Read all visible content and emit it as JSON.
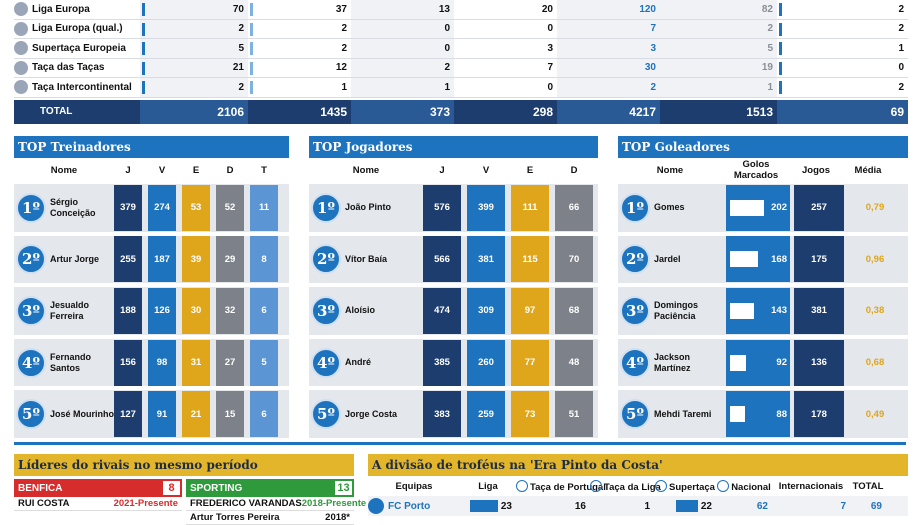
{
  "competitions": {
    "rows": [
      {
        "name": "Liga Europa",
        "icon": "trophy-icon",
        "values": [
          "70",
          "37",
          "13",
          "20",
          "120",
          "82",
          "2"
        ]
      },
      {
        "name": "Liga Europa (qual.)",
        "icon": "trophy-icon",
        "values": [
          "2",
          "2",
          "0",
          "0",
          "7",
          "2",
          "2"
        ]
      },
      {
        "name": "Supertaça Europeia",
        "icon": "trophy-icon",
        "values": [
          "5",
          "2",
          "0",
          "3",
          "3",
          "5",
          "1"
        ]
      },
      {
        "name": "Taça das Taças",
        "icon": "trophy-icon",
        "values": [
          "21",
          "12",
          "2",
          "7",
          "30",
          "19",
          "0"
        ]
      },
      {
        "name": "Taça Intercontinental",
        "icon": "trophy-icon",
        "values": [
          "2",
          "1",
          "1",
          "0",
          "2",
          "1",
          "2"
        ]
      }
    ],
    "total": {
      "label": "TOTAL",
      "values": [
        "2106",
        "1435",
        "373",
        "298",
        "4217",
        "1513",
        "69"
      ]
    }
  },
  "top_treinadores": {
    "title": "TOP Treinadores",
    "columns": [
      "Nome",
      "J",
      "V",
      "E",
      "D",
      "T"
    ],
    "rows": [
      {
        "rank": "1º",
        "name": "Sérgio Conceição",
        "values": [
          "379",
          "274",
          "53",
          "52",
          "11"
        ]
      },
      {
        "rank": "2º",
        "name": "Artur Jorge",
        "values": [
          "255",
          "187",
          "39",
          "29",
          "8"
        ]
      },
      {
        "rank": "3º",
        "name": "Jesualdo Ferreira",
        "values": [
          "188",
          "126",
          "30",
          "32",
          "6"
        ]
      },
      {
        "rank": "4º",
        "name": "Fernando Santos",
        "values": [
          "156",
          "98",
          "31",
          "27",
          "5"
        ]
      },
      {
        "rank": "5º",
        "name": "José Mourinho",
        "values": [
          "127",
          "91",
          "21",
          "15",
          "6"
        ]
      }
    ]
  },
  "top_jogadores": {
    "title": "TOP Jogadores",
    "columns": [
      "Nome",
      "J",
      "V",
      "E",
      "D"
    ],
    "rows": [
      {
        "rank": "1º",
        "name": "João Pinto",
        "values": [
          "576",
          "399",
          "111",
          "66"
        ]
      },
      {
        "rank": "2º",
        "name": "Vítor Baía",
        "values": [
          "566",
          "381",
          "115",
          "70"
        ]
      },
      {
        "rank": "3º",
        "name": "Aloísio",
        "values": [
          "474",
          "309",
          "97",
          "68"
        ]
      },
      {
        "rank": "4º",
        "name": "André",
        "values": [
          "385",
          "260",
          "77",
          "48"
        ]
      },
      {
        "rank": "5º",
        "name": "Jorge Costa",
        "values": [
          "383",
          "259",
          "73",
          "51"
        ]
      }
    ]
  },
  "top_goleadores": {
    "title": "TOP Goleadores",
    "columns": [
      "Nome",
      "Golos Marcados",
      "Jogos",
      "Média"
    ],
    "rows": [
      {
        "rank": "1º",
        "name": "Gomes",
        "goals": "202",
        "goals_fraction": 1.0,
        "games": "257",
        "avg": "0,79"
      },
      {
        "rank": "2º",
        "name": "Jardel",
        "goals": "168",
        "goals_fraction": 0.83,
        "games": "175",
        "avg": "0,96"
      },
      {
        "rank": "3º",
        "name": "Domingos Paciência",
        "goals": "143",
        "goals_fraction": 0.71,
        "games": "381",
        "avg": "0,38"
      },
      {
        "rank": "4º",
        "name": "Jackson Martínez",
        "goals": "92",
        "goals_fraction": 0.46,
        "games": "136",
        "avg": "0,68"
      },
      {
        "rank": "5º",
        "name": "Mehdi Taremi",
        "goals": "88",
        "goals_fraction": 0.44,
        "games": "178",
        "avg": "0,49"
      }
    ]
  },
  "rivals": {
    "title": "Líderes do rivais no mesmo período",
    "benfica": {
      "club": "BENFICA",
      "count": "8",
      "presidents": [
        {
          "name": "RUI COSTA",
          "years": "2021-Presente"
        }
      ]
    },
    "sporting": {
      "club": "SPORTING",
      "count": "13",
      "presidents": [
        {
          "name": "FREDERICO VARANDAS",
          "years": "2018-Presente"
        },
        {
          "name": "Artur Torres Pereira",
          "years": "2018*"
        }
      ]
    }
  },
  "trophies": {
    "title": "A divisão de troféus na 'Era Pinto da Costa'",
    "columns": [
      "Equipas",
      "Liga",
      "Taça de Portugal",
      "Taça da Liga",
      "Supertaça",
      "Nacional",
      "Internacionais",
      "TOTAL"
    ],
    "rows": [
      {
        "team": "FC Porto",
        "values": [
          "23",
          "16",
          "1",
          "22",
          "62",
          "7",
          "69"
        ]
      }
    ]
  }
}
